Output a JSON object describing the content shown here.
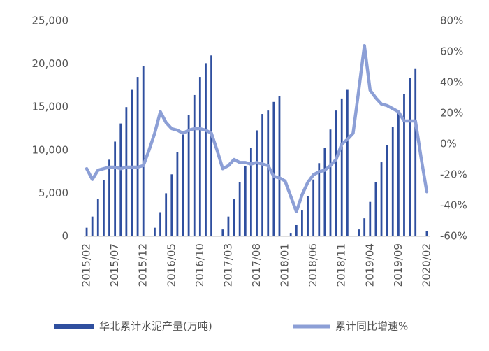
{
  "chart_data": {
    "type": "bar-line",
    "categories": [
      "2015/02",
      null,
      null,
      null,
      null,
      "2015/07",
      null,
      null,
      null,
      null,
      "2015/12",
      null,
      null,
      null,
      null,
      "2016/05",
      null,
      null,
      null,
      null,
      "2016/10",
      null,
      null,
      null,
      null,
      "2017/03",
      null,
      null,
      null,
      null,
      "2017/08",
      null,
      null,
      null,
      null,
      "2018/01",
      null,
      null,
      null,
      null,
      "2018/06",
      null,
      null,
      null,
      null,
      "2018/11",
      null,
      null,
      null,
      null,
      "2019/04",
      null,
      null,
      null,
      null,
      "2019/09",
      null,
      null,
      null,
      null,
      "2020/02"
    ],
    "series": [
      {
        "name": "华北累计水泥产量(万吨)",
        "color": "#2f4f9f",
        "type": "bar",
        "values": [
          1000,
          2300,
          4300,
          6500,
          8900,
          11000,
          13100,
          15000,
          17000,
          18500,
          19800,
          null,
          1000,
          2800,
          5000,
          7200,
          9800,
          12000,
          14100,
          16400,
          18500,
          20100,
          21000,
          null,
          800,
          2300,
          4300,
          6300,
          8200,
          10300,
          12300,
          14200,
          14600,
          15600,
          16300,
          null,
          400,
          1300,
          3000,
          4700,
          6600,
          8500,
          10300,
          12400,
          14600,
          16000,
          17000,
          null,
          800,
          2100,
          4000,
          6300,
          8600,
          10600,
          12700,
          14500,
          16500,
          18400,
          19500,
          null,
          600
        ]
      },
      {
        "name": "累计同比增速%",
        "color": "#8c9fd6",
        "type": "line",
        "axis": "y2",
        "values": [
          -16,
          -23,
          -17,
          -16,
          -15,
          -15,
          -16,
          -15,
          -15,
          -15,
          -14,
          -4,
          7,
          21,
          14,
          10,
          9,
          7,
          9,
          10,
          10,
          9,
          7,
          -4,
          -16,
          -14,
          -10,
          -12,
          -12,
          -13,
          -12,
          -13,
          -14,
          -21,
          -22,
          -24,
          -34,
          -44,
          -33,
          -25,
          -20,
          -18,
          -17,
          -14,
          -10,
          0,
          3,
          7,
          35,
          64,
          35,
          30,
          26,
          25,
          23,
          21,
          15,
          15,
          15,
          -9,
          -31
        ]
      }
    ],
    "ylim": [
      0,
      25000
    ],
    "yticks": [
      0,
      {
        "value": 5000,
        "label": "5,000"
      },
      {
        "value": 10000,
        "label": "10,000"
      },
      {
        "value": 15000,
        "label": "15,000"
      },
      {
        "value": 20000,
        "label": "20,000"
      },
      {
        "value": 25000,
        "label": "25,000"
      }
    ],
    "y2lim": [
      -60,
      80
    ],
    "y2ticks": [
      {
        "value": -60,
        "label": "-60%"
      },
      {
        "value": -40,
        "label": "-40%"
      },
      {
        "value": -20,
        "label": "-20%"
      },
      {
        "value": 0,
        "label": "0%"
      },
      {
        "value": 20,
        "label": "20%"
      },
      {
        "value": 40,
        "label": "40%"
      },
      {
        "value": 60,
        "label": "60%"
      },
      {
        "value": 80,
        "label": "80%"
      }
    ],
    "grid": false
  }
}
